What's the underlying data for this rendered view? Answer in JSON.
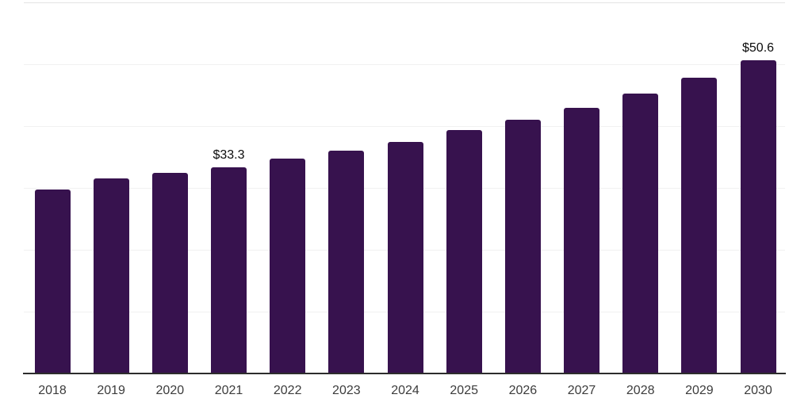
{
  "chart_data": {
    "type": "bar",
    "title": "",
    "xlabel": "",
    "ylabel": "",
    "categories": [
      "2018",
      "2019",
      "2020",
      "2021",
      "2022",
      "2023",
      "2024",
      "2025",
      "2026",
      "2027",
      "2028",
      "2029",
      "2030"
    ],
    "values": [
      29.7,
      31.6,
      32.4,
      33.3,
      34.7,
      36.0,
      37.4,
      39.3,
      41.0,
      43.0,
      45.2,
      47.8,
      50.6
    ],
    "annotations": [
      {
        "category": "2021",
        "label": "$33.3"
      },
      {
        "category": "2030",
        "label": "$50.6"
      }
    ],
    "ylim": [
      0,
      60
    ],
    "grid_step": 10,
    "grid": true,
    "legend": false,
    "y_tick_labels_shown": false,
    "colors": {
      "bar": "#37124e",
      "axis_line": "#2d2d2d",
      "x_tick_label": "#3c3c3c",
      "annotation_text": "#0b0b0b",
      "gridline": "#f1f1f1",
      "top_gridline": "#e4e4e4",
      "background": "#ffffff"
    }
  }
}
